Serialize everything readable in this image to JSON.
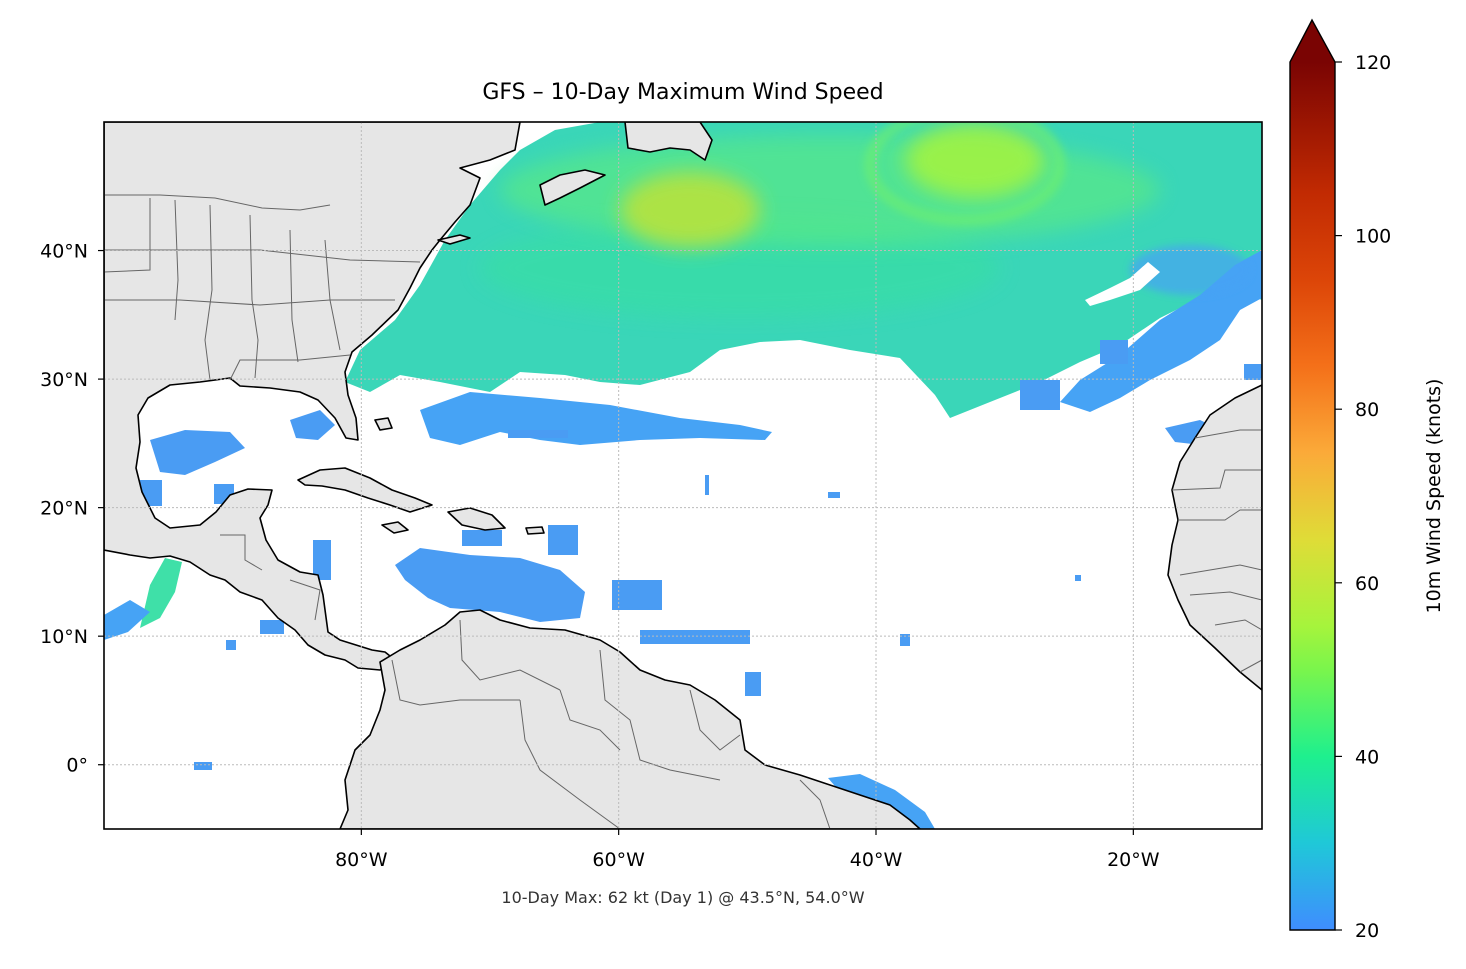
{
  "map": {
    "title": "GFS – 10-Day Maximum Wind Speed",
    "footer": "10-Day Max: 62 kt (Day 1) @ 43.5°N, 54.0°W",
    "extent": {
      "lon_min": -100,
      "lon_max": -10,
      "lat_min": -5,
      "lat_max": 50
    },
    "lon_ticks": [
      {
        "lon": -80,
        "label": "80°W"
      },
      {
        "lon": -60,
        "label": "60°W"
      },
      {
        "lon": -40,
        "label": "40°W"
      },
      {
        "lon": -20,
        "label": "20°W"
      }
    ],
    "lat_ticks": [
      {
        "lat": 40,
        "label": "40°N"
      },
      {
        "lat": 30,
        "label": "30°N"
      },
      {
        "lat": 20,
        "label": "20°N"
      },
      {
        "lat": 10,
        "label": "10°N"
      },
      {
        "lat": 0,
        "label": "0°"
      }
    ],
    "colors": {
      "land": "#e6e6e6",
      "ocean": "#ffffff",
      "coast": "#000000",
      "borders": "#666666",
      "grid": "#bbbbbb"
    }
  },
  "colorbar": {
    "label": "10m Wind Speed (knots)",
    "min": 20,
    "max": 120,
    "extend": "max",
    "ticks": [
      {
        "value": 20,
        "label": "20"
      },
      {
        "value": 40,
        "label": "40"
      },
      {
        "value": 60,
        "label": "60"
      },
      {
        "value": 80,
        "label": "80"
      },
      {
        "value": 100,
        "label": "100"
      },
      {
        "value": 120,
        "label": "120"
      }
    ],
    "stops": [
      {
        "value": 20,
        "color": "#3f8dff"
      },
      {
        "value": 30,
        "color": "#1fc8d8"
      },
      {
        "value": 40,
        "color": "#1ef08e"
      },
      {
        "value": 50,
        "color": "#7af54c"
      },
      {
        "value": 55,
        "color": "#a6f43c"
      },
      {
        "value": 65,
        "color": "#dfdc37"
      },
      {
        "value": 75,
        "color": "#fbaa39"
      },
      {
        "value": 85,
        "color": "#f47019"
      },
      {
        "value": 95,
        "color": "#dc4508"
      },
      {
        "value": 105,
        "color": "#c12a02"
      },
      {
        "value": 120,
        "color": "#7a0403"
      }
    ]
  },
  "wind_features": [
    {
      "name": "atlantic-jet-north",
      "lon": -45,
      "lat": 42,
      "speed": 45
    },
    {
      "name": "maximum-wind",
      "lon": -54,
      "lat": 43.5,
      "speed": 62
    },
    {
      "name": "cyclone-swirl",
      "lon": -33,
      "lat": 46.5,
      "speed": 55
    },
    {
      "name": "east-atlantic-lobe",
      "lon": -18,
      "lat": 38,
      "speed": 35
    },
    {
      "name": "subtropical-band",
      "lon": -60,
      "lat": 26,
      "speed": 28
    },
    {
      "name": "caribbean-jet",
      "lon": -60,
      "lat": 14,
      "speed": 24
    },
    {
      "name": "gulf-of-tehuantepec",
      "lon": -95.5,
      "lat": 14,
      "speed": 38
    },
    {
      "name": "south-atlantic-patch",
      "lon": -39,
      "lat": -3,
      "speed": 24
    }
  ]
}
